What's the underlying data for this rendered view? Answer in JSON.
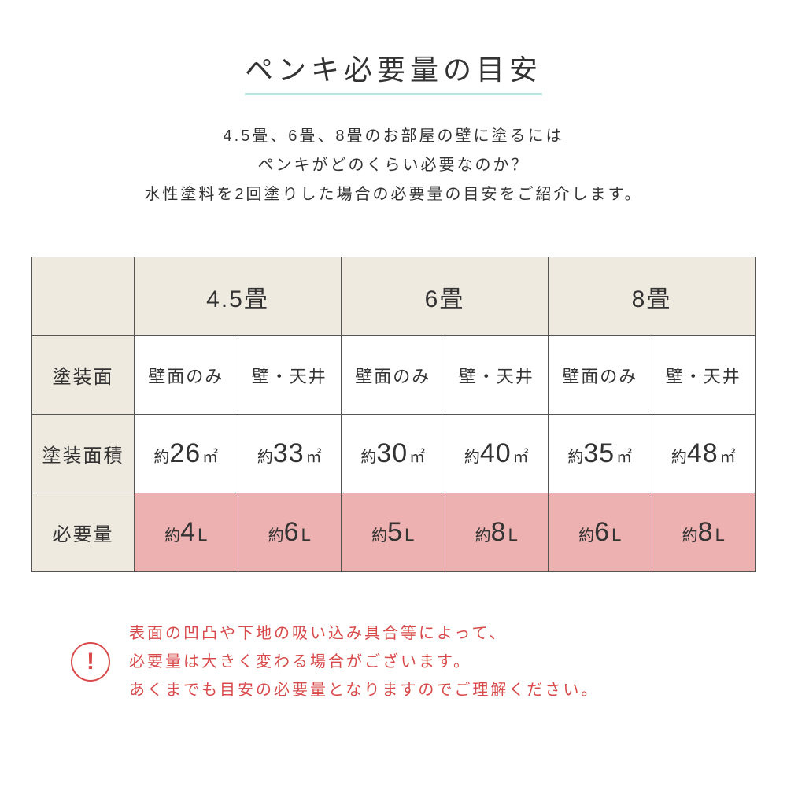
{
  "title": "ペンキ必要量の目安",
  "intro_lines": [
    "4.5畳、6畳、8畳のお部屋の壁に塗るには",
    "ペンキがどのくらい必要なのか？",
    "水性塗料を2回塗りした場合の必要量の目安をご紹介します。"
  ],
  "columns": [
    "4.5畳",
    "6畳",
    "8畳"
  ],
  "row_labels": {
    "surface": "塗装面",
    "area": "塗装面積",
    "quantity": "必要量"
  },
  "surface_options": [
    "壁面のみ",
    "壁・天井"
  ],
  "area_prefix": "約",
  "area_unit": "㎡",
  "area_values": [
    [
      26,
      33
    ],
    [
      30,
      40
    ],
    [
      35,
      48
    ]
  ],
  "qty_prefix": "約",
  "qty_unit": "L",
  "qty_values": [
    [
      4,
      6
    ],
    [
      5,
      8
    ],
    [
      6,
      8
    ]
  ],
  "note_icon": "!",
  "note_lines": [
    "表面の凹凸や下地の吸い込み具合等によって、",
    "必要量は大きく変わる場合がございます。",
    "あくまでも目安の必要量となりますのでご理解ください。"
  ],
  "colors": {
    "header_bg": "#efeae0",
    "highlight_bg": "#eeb1b1",
    "border": "#555555",
    "accent_underline": "#b8e6e0",
    "warning": "#d84a4a",
    "text": "#333333",
    "background": "#ffffff"
  }
}
